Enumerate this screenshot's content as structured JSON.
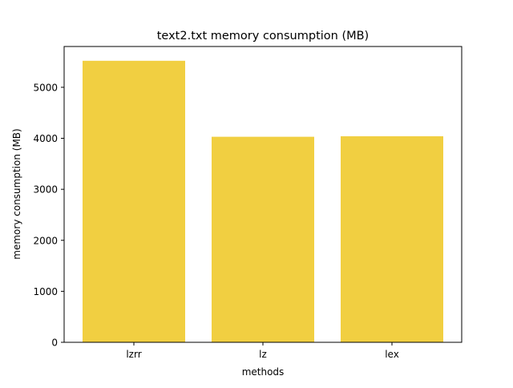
{
  "chart_data": {
    "type": "bar",
    "title": "text2.txt memory consumption (MB)",
    "xlabel": "methods",
    "ylabel": "memory consumption (MB)",
    "categories": [
      "lzrr",
      "lz",
      "lex"
    ],
    "values": [
      5520,
      4030,
      4040
    ],
    "ylim": [
      0,
      5800
    ],
    "yticks": [
      0,
      1000,
      2000,
      3000,
      4000,
      5000
    ],
    "bar_color": "#f1cf41",
    "grid": false,
    "legend": "none"
  }
}
